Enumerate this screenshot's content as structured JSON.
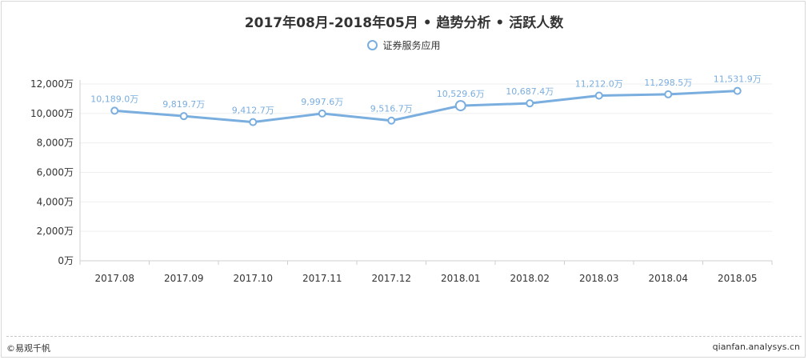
{
  "title": "2017年08月-2018年05月 • 趋势分析 • 活跃人数",
  "footer": {
    "left": "©易观千帆",
    "right": "qianfan.analysys.cn"
  },
  "colors": {
    "line": "#7aaedf",
    "axis": "#cfcfcf",
    "grid": "#efefef",
    "text": "#333333"
  },
  "chart_data": {
    "type": "line",
    "title": "2017年08月-2018年05月 • 趋势分析 • 活跃人数",
    "categories": [
      "2017.08",
      "2017.09",
      "2017.10",
      "2017.11",
      "2017.12",
      "2018.01",
      "2018.02",
      "2018.03",
      "2018.04",
      "2018.05"
    ],
    "series": [
      {
        "name": "证券服务应用",
        "values": [
          10189.0,
          9819.7,
          9412.7,
          9997.6,
          9516.7,
          10529.6,
          10687.4,
          11212.0,
          11298.5,
          11531.9
        ],
        "labels": [
          "10,189.0万",
          "9,819.7万",
          "9,412.7万",
          "9,997.6万",
          "9,516.7万",
          "10,529.6万",
          "10,687.4万",
          "11,212.0万",
          "11,298.5万",
          "11,531.9万"
        ]
      }
    ],
    "y_ticks": [
      "0万",
      "2,000万",
      "4,000万",
      "6,000万",
      "8,000万",
      "10,000万",
      "12,000万"
    ],
    "ylim": [
      0,
      12000
    ],
    "grid": true,
    "legend": "top-center"
  }
}
